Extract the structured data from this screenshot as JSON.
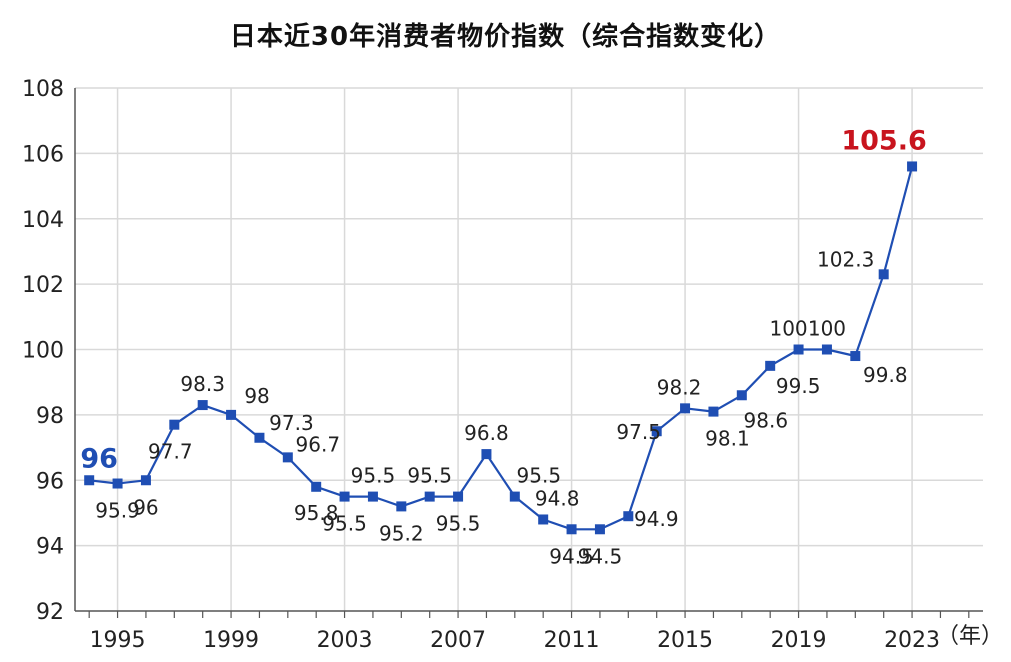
{
  "chart_data": {
    "type": "line",
    "title": "日本近30年消费者物价指数（综合指数变化）",
    "x_unit_label": "（年）",
    "xlabel": "",
    "ylabel": "",
    "x": [
      1994,
      1995,
      1996,
      1997,
      1998,
      1999,
      2000,
      2001,
      2002,
      2003,
      2004,
      2005,
      2006,
      2007,
      2008,
      2009,
      2010,
      2011,
      2012,
      2013,
      2014,
      2015,
      2016,
      2017,
      2018,
      2019,
      2020,
      2021,
      2022,
      2023
    ],
    "values": [
      96,
      95.9,
      96,
      97.7,
      98.3,
      98,
      97.3,
      96.7,
      95.8,
      95.5,
      95.5,
      95.2,
      95.5,
      95.5,
      96.8,
      95.5,
      94.8,
      94.5,
      94.5,
      94.9,
      97.5,
      98.2,
      98.1,
      98.6,
      99.5,
      100,
      100,
      99.8,
      102.3,
      105.6
    ],
    "data_labels": [
      "96",
      "95.9",
      "96",
      "97.7",
      "98.3",
      "98",
      "97.3",
      "96.7",
      "95.8",
      "95.5",
      "95.5",
      "95.2",
      "95.5",
      "95.5",
      "96.8",
      "95.5",
      "94.8",
      "94.5",
      "94.5",
      "94.9",
      "97.5",
      "98.2",
      "98.1",
      "98.6",
      "99.5",
      "100",
      "100",
      "99.8",
      "102.3",
      "105.6"
    ],
    "x_tick_labels": [
      "1995",
      "1999",
      "2003",
      "2007",
      "2011",
      "2015",
      "2019",
      "2023"
    ],
    "x_tick_years": [
      1995,
      1999,
      2003,
      2007,
      2011,
      2015,
      2019,
      2023
    ],
    "y_ticks": [
      92,
      94,
      96,
      98,
      100,
      102,
      104,
      106,
      108
    ],
    "ylim": [
      92,
      108
    ],
    "xlim": [
      1993.5,
      2025.5
    ],
    "grid": true,
    "colors": {
      "line": "#1f4eb3",
      "marker": "#1f4eb3",
      "first_label": "#1f4eb3",
      "last_label": "#c8141e",
      "grid": "#d9d9d9",
      "axis": "#555555"
    }
  }
}
